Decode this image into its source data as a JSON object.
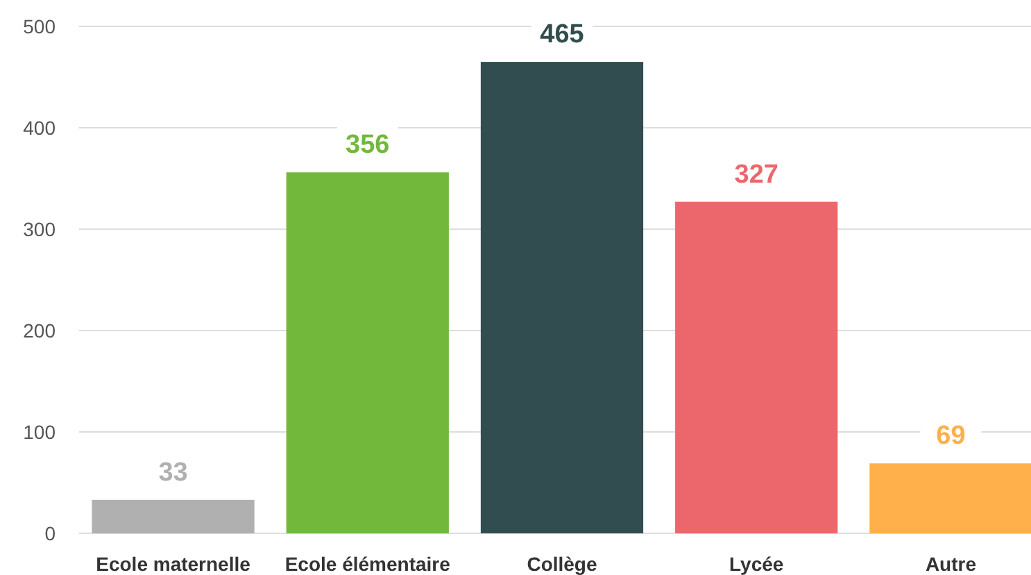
{
  "chart_data": {
    "type": "bar",
    "categories": [
      "Ecole maternelle",
      "Ecole élémentaire",
      "Collège",
      "Lycée",
      "Autre"
    ],
    "values": [
      33,
      356,
      465,
      327,
      69
    ],
    "colors": [
      "#b0b0b0",
      "#72b83a",
      "#324d4f",
      "#ec676b",
      "#ffb04a"
    ],
    "ylim": [
      0,
      500
    ],
    "yticks": [
      0,
      100,
      200,
      300,
      400,
      500
    ],
    "grid": "y",
    "data_labels": true
  }
}
